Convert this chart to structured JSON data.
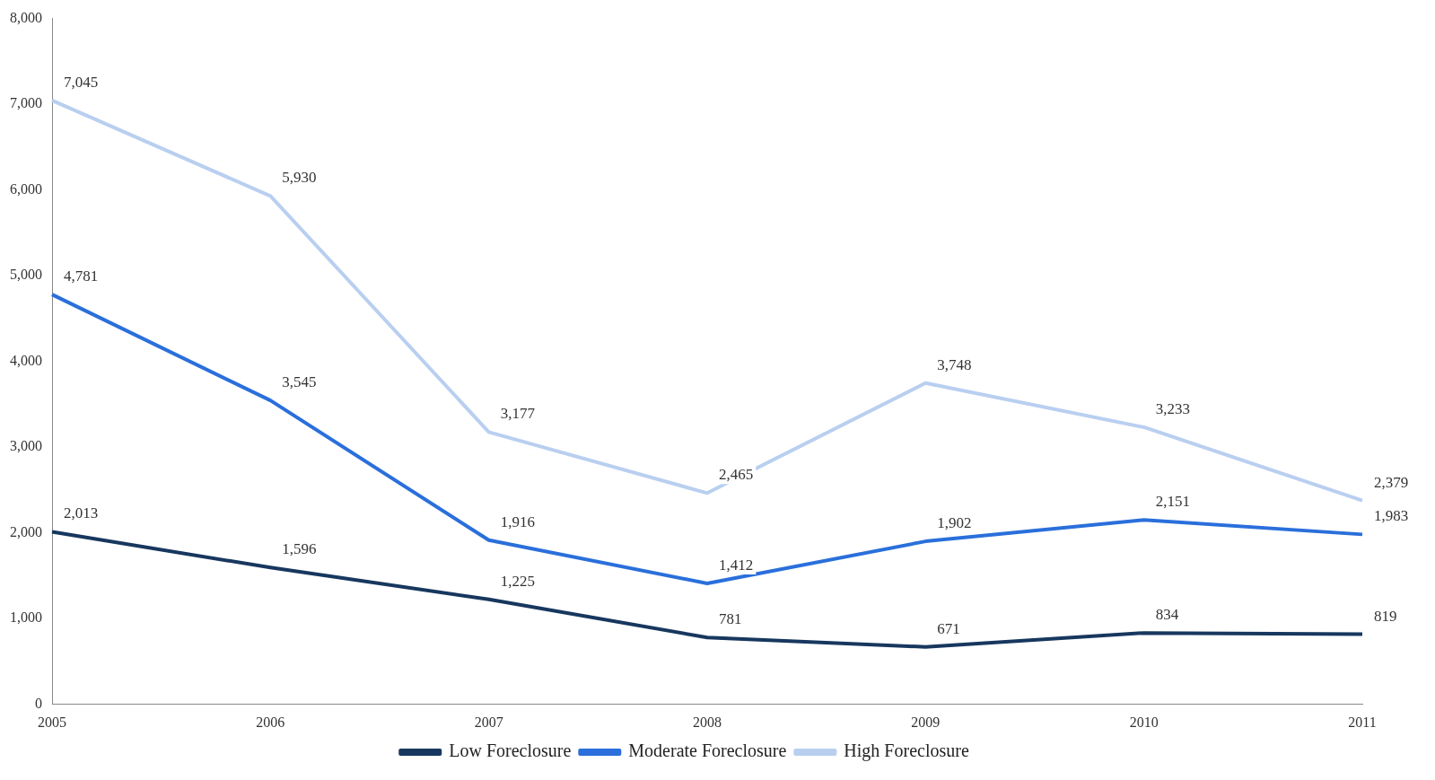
{
  "chart_data": {
    "type": "line",
    "categories": [
      "2005",
      "2006",
      "2007",
      "2008",
      "2009",
      "2010",
      "2011"
    ],
    "series": [
      {
        "name": "Low Foreclosure",
        "color": "#17375e",
        "values": [
          2013,
          1596,
          1225,
          781,
          671,
          834,
          819
        ],
        "value_labels": [
          "2,013",
          "1,596",
          "1,225",
          "781",
          "671",
          "834",
          "819"
        ]
      },
      {
        "name": "Moderate Foreclosure",
        "color": "#2a6fdb",
        "values": [
          4781,
          3545,
          1916,
          1412,
          1902,
          2151,
          1983
        ],
        "value_labels": [
          "4,781",
          "3,545",
          "1,916",
          "1,412",
          "1,902",
          "2,151",
          "1,983"
        ]
      },
      {
        "name": "High Foreclosure",
        "color": "#b9cff0",
        "values": [
          7045,
          5930,
          3177,
          2465,
          3748,
          3233,
          2379
        ],
        "value_labels": [
          "7,045",
          "5,930",
          "3,177",
          "2,465",
          "3,748",
          "3,233",
          "2,379"
        ]
      }
    ],
    "ylim": [
      0,
      8000
    ],
    "yticks": [
      {
        "value": 0,
        "label": "0"
      },
      {
        "value": 1000,
        "label": "1,000"
      },
      {
        "value": 2000,
        "label": "2,000"
      },
      {
        "value": 3000,
        "label": "3,000"
      },
      {
        "value": 4000,
        "label": "4,000"
      },
      {
        "value": 5000,
        "label": "5,000"
      },
      {
        "value": 6000,
        "label": "6,000"
      },
      {
        "value": 7000,
        "label": "7,000"
      },
      {
        "value": 8000,
        "label": "8,000"
      }
    ],
    "grid": false,
    "legend": "bottom",
    "marker": "none",
    "line_style": "solid"
  }
}
